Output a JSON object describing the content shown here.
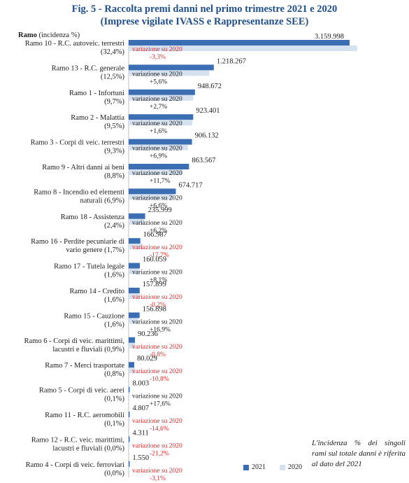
{
  "header": {
    "title_line1": "Fig. 5 - Raccolta premi danni nel primo trimestre 2021 e 2020",
    "title_line2": "(Imprese vigilate IVASS e Rappresentanze SEE)",
    "axis_head_bold": "Ramo",
    "axis_head_rest": " (incidenza %)"
  },
  "colors": {
    "title": "#1f4e8c",
    "bar_2021": "#3c6eb4",
    "bar_2020": "#d6e1ef",
    "positive_variation": "#1a1a1a",
    "negative_variation": "#d22b2b"
  },
  "variation_label": "variazione su 2020",
  "note": "L'incidenza % dei singoli rami sul totale danni è riferita al dato del 2021",
  "chart_data": {
    "type": "bar",
    "orientation": "horizontal",
    "title": "Fig. 5 - Raccolta premi danni nel primo trimestre 2021 e 2020",
    "subtitle": "(Imprese vigilate IVASS e Rappresentanze SEE)",
    "legend": [
      "2021",
      "2020"
    ],
    "legend_position": "bottom",
    "categories": [
      {
        "l1": "Ramo 10 - R.C. autoveic. terrestri",
        "l2": "(32,4%)",
        "v2021": 3159998,
        "label": "3.159.998",
        "var": "-3,3%"
      },
      {
        "l1": "Ramo 13 - R.C. generale",
        "l2": "(12,5%)",
        "v2021": 1218267,
        "label": "1.218.267",
        "var": "+5,6%"
      },
      {
        "l1": "Ramo 1 - Infortuni",
        "l2": "(9,7%)",
        "v2021": 948672,
        "label": "948.672",
        "var": "+2,7%"
      },
      {
        "l1": "Ramo 2 - Malattia",
        "l2": "(9,5%)",
        "v2021": 923401,
        "label": "923.401",
        "var": "+1,6%"
      },
      {
        "l1": "Ramo 3 - Corpi di veic. terrestri",
        "l2": "(9,3%)",
        "v2021": 906132,
        "label": "906.132",
        "var": "+6,9%"
      },
      {
        "l1": "Ramo 9 - Altri danni ai beni",
        "l2": "(8,8%)",
        "v2021": 863567,
        "label": "863.567",
        "var": "+11,7%"
      },
      {
        "l1": "Ramo 8 - Incendio ed elementi",
        "l2": "naturali (6,9%)",
        "v2021": 674717,
        "label": "674.717",
        "var": "+6,6%"
      },
      {
        "l1": "Ramo 18 - Assistenza",
        "l2": "(2,4%)",
        "v2021": 235999,
        "label": "235.999",
        "var": "+6,2%"
      },
      {
        "l1": "Ramo 16 - Perdite pecuniarie di",
        "l2": "vario genere (1,7%)",
        "v2021": 166987,
        "label": "166.987",
        "var": "-17,7%"
      },
      {
        "l1": "Ramo 17 - Tutela legale",
        "l2": "(1,6%)",
        "v2021": 160059,
        "label": "160.059",
        "var": "+8,1%"
      },
      {
        "l1": "Ramo 14 - Credito",
        "l2": "(1,6%)",
        "v2021": 157899,
        "label": "157.899",
        "var": "-0,2%"
      },
      {
        "l1": "Ramo 15 - Cauzione",
        "l2": "(1,6%)",
        "v2021": 156898,
        "label": "156.898",
        "var": "+16,9%"
      },
      {
        "l1": "Ramo 6 - Corpi di veic. marittimi,",
        "l2": "lacustri e fluviali (0,9%)",
        "v2021": 90236,
        "label": "90.236",
        "var": "-0,8%"
      },
      {
        "l1": "Ramo 7 - Merci trasportate",
        "l2": "(0,8%)",
        "v2021": 80029,
        "label": "80.029",
        "var": "-10,8%"
      },
      {
        "l1": "Ramo 5 - Corpi di veic. aerei",
        "l2": "(0,1%)",
        "v2021": 8003,
        "label": "8.003",
        "var": "+17,6%"
      },
      {
        "l1": "Ramo 11 - R.C. aeromobili",
        "l2": "(0,1%)",
        "v2021": 4807,
        "label": "4.807",
        "var": "-14,6%"
      },
      {
        "l1": "Ramo 12 - R.C. veic. marittimi,",
        "l2": "lacustri e fluviali (0,0%)",
        "v2021": 4311,
        "label": "4.311",
        "var": "-21,2%"
      },
      {
        "l1": "Ramo 4 - Corpi di veic. ferroviari",
        "l2": "(0,0%)",
        "v2021": 1550,
        "label": "1.550",
        "var": "-3,1%"
      }
    ]
  }
}
